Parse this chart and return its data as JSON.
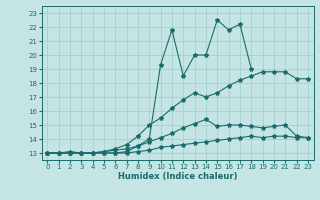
{
  "xlabel": "Humidex (Indice chaleur)",
  "xlim": [
    -0.5,
    23.5
  ],
  "ylim": [
    12.5,
    23.5
  ],
  "xticks": [
    0,
    1,
    2,
    3,
    4,
    5,
    6,
    7,
    8,
    9,
    10,
    11,
    12,
    13,
    14,
    15,
    16,
    17,
    18,
    19,
    20,
    21,
    22,
    23
  ],
  "yticks": [
    13,
    14,
    15,
    16,
    17,
    18,
    19,
    20,
    21,
    22,
    23
  ],
  "bg_color": "#c5e5e5",
  "grid_color": "#9ecece",
  "line_color": "#1a6b6b",
  "curve1_x": [
    0,
    1,
    2,
    3,
    4,
    5,
    6,
    7,
    8,
    9,
    10,
    11,
    12,
    13,
    14,
    15,
    16,
    17,
    18,
    19,
    20,
    21,
    22,
    23
  ],
  "curve1_y": [
    13,
    13,
    13,
    13,
    13,
    13,
    13,
    13,
    13.1,
    13.2,
    13.4,
    13.5,
    13.6,
    13.7,
    13.8,
    13.9,
    14.0,
    14.1,
    14.2,
    14.1,
    14.2,
    14.2,
    14.1,
    14.1
  ],
  "curve2_x": [
    0,
    1,
    2,
    3,
    4,
    5,
    6,
    7,
    8,
    9,
    10,
    11,
    12,
    13,
    14,
    15,
    16,
    17,
    18,
    19,
    20,
    21,
    22,
    23
  ],
  "curve2_y": [
    13,
    13,
    13,
    13,
    13,
    13.1,
    13.2,
    13.3,
    13.5,
    13.8,
    14.1,
    14.4,
    14.8,
    15.1,
    15.4,
    14.9,
    15.0,
    15.0,
    14.9,
    14.8,
    14.9,
    15.0,
    14.2,
    14.1
  ],
  "curve3_x": [
    0,
    1,
    2,
    3,
    4,
    5,
    6,
    7,
    8,
    9,
    10,
    11,
    12,
    13,
    14,
    15,
    16,
    17,
    18
  ],
  "curve3_y": [
    13,
    13,
    13.1,
    13,
    13,
    13,
    13,
    13.1,
    13.5,
    14.0,
    19.3,
    21.8,
    18.5,
    20.0,
    20.0,
    22.5,
    21.8,
    22.2,
    19.0
  ],
  "curve4_x": [
    0,
    1,
    2,
    3,
    4,
    5,
    6,
    7,
    8,
    9,
    10,
    11,
    12,
    13,
    14,
    15,
    16,
    17,
    18,
    19,
    20,
    21,
    22,
    23
  ],
  "curve4_y": [
    13,
    13,
    13,
    13,
    13,
    13.1,
    13.3,
    13.6,
    14.2,
    15.0,
    15.5,
    16.2,
    16.8,
    17.3,
    17.0,
    17.3,
    17.8,
    18.2,
    18.5,
    18.8,
    18.8,
    18.8,
    18.3,
    18.3
  ]
}
